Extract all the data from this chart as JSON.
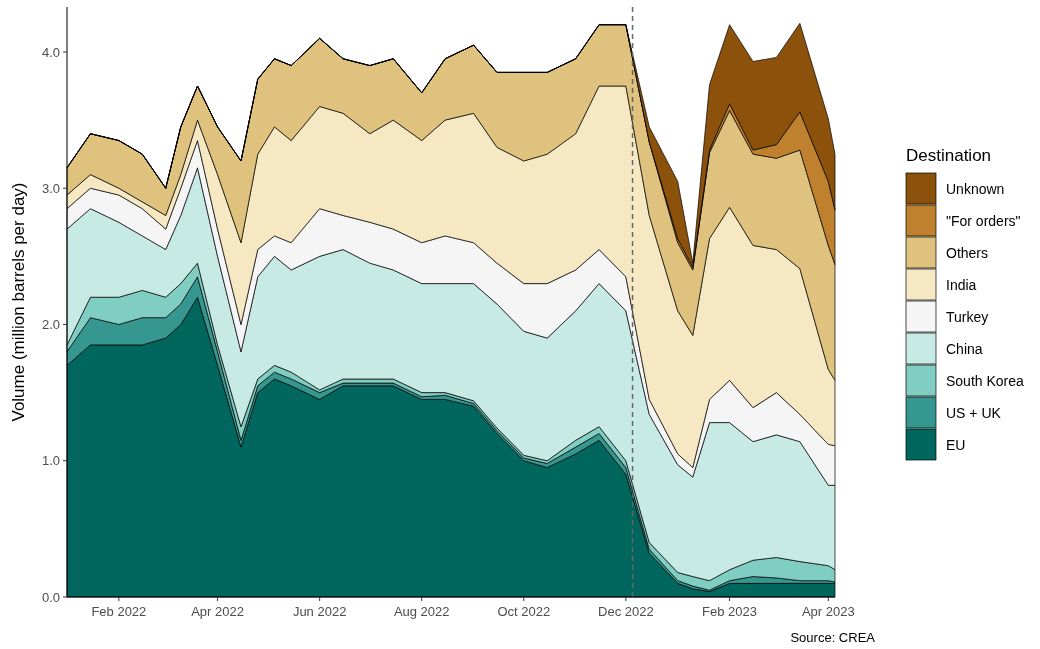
{
  "chart_data": {
    "type": "area",
    "stacked": true,
    "ylabel": "Volume (million barrels per day)",
    "legend_title": "Destination",
    "legend": "right",
    "grid": false,
    "annotations": [
      "Source: CREA"
    ],
    "x": [
      "2022-01-01",
      "2022-01-15",
      "2022-02-01",
      "2022-02-15",
      "2022-03-01",
      "2022-03-10",
      "2022-03-20",
      "2022-04-01",
      "2022-04-15",
      "2022-04-25",
      "2022-05-05",
      "2022-05-15",
      "2022-06-01",
      "2022-06-15",
      "2022-07-01",
      "2022-07-15",
      "2022-08-01",
      "2022-08-15",
      "2022-09-01",
      "2022-09-15",
      "2022-10-01",
      "2022-10-15",
      "2022-11-01",
      "2022-11-15",
      "2022-12-01",
      "2022-12-15",
      "2023-01-01",
      "2023-01-10",
      "2023-01-20",
      "2023-02-01",
      "2023-02-15",
      "2023-03-01",
      "2023-03-15",
      "2023-04-01",
      "2023-04-05"
    ],
    "xlim": [
      "2022-01-01",
      "2023-04-05"
    ],
    "xticks": [
      {
        "value": "2022-02-01",
        "label": "Feb 2022"
      },
      {
        "value": "2022-04-01",
        "label": "Apr 2022"
      },
      {
        "value": "2022-06-01",
        "label": "Jun 2022"
      },
      {
        "value": "2022-08-01",
        "label": "Aug 2022"
      },
      {
        "value": "2022-10-01",
        "label": "Oct 2022"
      },
      {
        "value": "2022-12-01",
        "label": "Dec 2022"
      },
      {
        "value": "2023-02-01",
        "label": "Feb 2023"
      },
      {
        "value": "2023-04-01",
        "label": "Apr 2023"
      }
    ],
    "ylim": [
      0,
      4.33
    ],
    "yticks": [
      {
        "value": 0,
        "label": "0.0"
      },
      {
        "value": 1,
        "label": "1.0"
      },
      {
        "value": 2,
        "label": "2.0"
      },
      {
        "value": 3,
        "label": "3.0"
      },
      {
        "value": 4,
        "label": "4.0"
      }
    ],
    "ref_lines": [
      {
        "axis": "x",
        "value": "2022-12-05",
        "color": "#666666",
        "line_style": "dashed"
      }
    ],
    "series": [
      {
        "name": "EU",
        "color": "#01665e",
        "values": [
          1.7,
          1.85,
          1.85,
          1.85,
          1.9,
          2.0,
          2.2,
          1.7,
          1.1,
          1.5,
          1.6,
          1.55,
          1.45,
          1.55,
          1.55,
          1.55,
          1.45,
          1.45,
          1.4,
          1.2,
          1.0,
          0.95,
          1.05,
          1.15,
          0.9,
          0.32,
          0.1,
          0.06,
          0.04,
          0.1,
          0.1,
          0.1,
          0.1,
          0.1,
          0.1
        ]
      },
      {
        "name": "US + UK",
        "color": "#35978f",
        "values": [
          0.1,
          0.2,
          0.15,
          0.2,
          0.15,
          0.15,
          0.15,
          0.1,
          0.05,
          0.05,
          0.05,
          0.05,
          0.05,
          0.02,
          0.02,
          0.02,
          0.02,
          0.03,
          0.02,
          0.02,
          0.02,
          0.03,
          0.05,
          0.05,
          0.05,
          0.03,
          0.02,
          0.02,
          0.01,
          0.02,
          0.05,
          0.04,
          0.02,
          0.02,
          0.01
        ]
      },
      {
        "name": "South Korea",
        "color": "#80cdc1",
        "values": [
          0.05,
          0.15,
          0.2,
          0.2,
          0.15,
          0.15,
          0.1,
          0.05,
          0.1,
          0.05,
          0.05,
          0.05,
          0.02,
          0.03,
          0.03,
          0.03,
          0.03,
          0.02,
          0.02,
          0.02,
          0.02,
          0.02,
          0.05,
          0.05,
          0.05,
          0.05,
          0.06,
          0.07,
          0.07,
          0.08,
          0.12,
          0.15,
          0.14,
          0.11,
          0.09
        ]
      },
      {
        "name": "China",
        "color": "#c7eae5",
        "values": [
          0.85,
          0.65,
          0.55,
          0.4,
          0.35,
          0.5,
          0.7,
          0.65,
          0.55,
          0.75,
          0.8,
          0.75,
          0.98,
          0.95,
          0.85,
          0.8,
          0.8,
          0.8,
          0.86,
          0.91,
          0.91,
          0.9,
          0.95,
          1.05,
          1.1,
          0.94,
          0.79,
          0.73,
          1.16,
          1.08,
          0.87,
          0.9,
          0.88,
          0.59,
          0.62
        ]
      },
      {
        "name": "Turkey",
        "color": "#f5f5f5",
        "values": [
          0.15,
          0.15,
          0.2,
          0.2,
          0.15,
          0.2,
          0.2,
          0.2,
          0.2,
          0.2,
          0.15,
          0.2,
          0.35,
          0.25,
          0.3,
          0.3,
          0.3,
          0.35,
          0.3,
          0.3,
          0.35,
          0.4,
          0.3,
          0.25,
          0.25,
          0.11,
          0.08,
          0.07,
          0.17,
          0.31,
          0.25,
          0.31,
          0.2,
          0.3,
          0.29
        ]
      },
      {
        "name": "India",
        "color": "#f6e8c3",
        "values": [
          0.1,
          0.1,
          0.05,
          0.05,
          0.1,
          0.1,
          0.15,
          0.4,
          0.6,
          0.7,
          0.8,
          0.75,
          0.75,
          0.75,
          0.65,
          0.8,
          0.75,
          0.85,
          0.95,
          0.85,
          0.9,
          0.95,
          1.0,
          1.2,
          1.4,
          1.35,
          1.05,
          0.97,
          1.18,
          1.27,
          1.19,
          1.05,
          1.07,
          0.55,
          0.48
        ]
      },
      {
        "name": "Others",
        "color": "#dfc27d",
        "values": [
          0.2,
          0.3,
          0.35,
          0.35,
          0.2,
          0.35,
          0.25,
          0.35,
          0.6,
          0.55,
          0.5,
          0.55,
          0.5,
          0.4,
          0.5,
          0.45,
          0.35,
          0.45,
          0.5,
          0.55,
          0.65,
          0.6,
          0.55,
          0.45,
          0.45,
          0.54,
          0.5,
          0.48,
          0.63,
          0.71,
          0.67,
          0.67,
          0.87,
          0.91,
          0.85
        ]
      },
      {
        "name": "\"For orders\"",
        "color": "#bf812d",
        "values": [
          0,
          0,
          0,
          0,
          0,
          0,
          0,
          0,
          0,
          0,
          0,
          0,
          0,
          0,
          0,
          0,
          0,
          0,
          0,
          0,
          0,
          0,
          0,
          0,
          0,
          0,
          0.03,
          0.02,
          0.02,
          0.05,
          0.03,
          0.1,
          0.28,
          0.47,
          0.4
        ]
      },
      {
        "name": "Unknown",
        "color": "#8c510a",
        "values": [
          0,
          0,
          0,
          0,
          0,
          0,
          0,
          0,
          0,
          0,
          0,
          0,
          0,
          0,
          0,
          0,
          0,
          0,
          0,
          0,
          0,
          0,
          0,
          0,
          0,
          0.11,
          0.42,
          0.03,
          0.48,
          0.58,
          0.65,
          0.64,
          0.65,
          0.46,
          0.41
        ]
      }
    ]
  }
}
